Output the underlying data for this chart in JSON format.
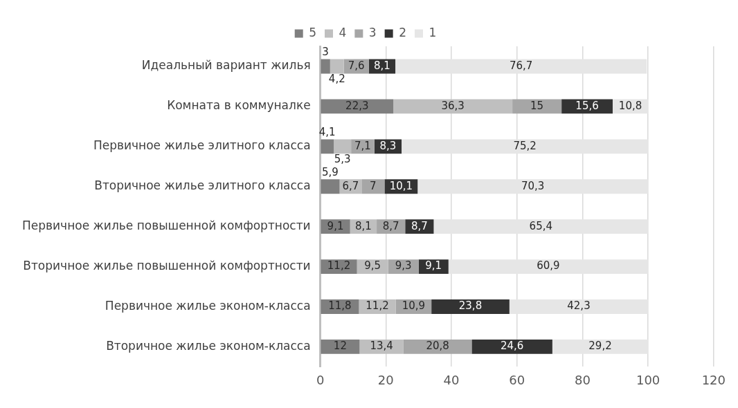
{
  "chart_data": {
    "type": "bar",
    "orientation": "horizontal",
    "stacked": true,
    "categories": [
      "Идеальный вариант жилья",
      "Комната в коммуналке",
      "Первичное жилье элитного класса",
      "Вторичное жилье элитного класса",
      "Первичное жилье повышенной комфортности",
      "Вторичное жилье повышенной комфортности",
      "Первичное жилье эконом-класса",
      "Вторичное жилье эконом-класса"
    ],
    "series": [
      {
        "name": "5",
        "color": "#7f7f7f",
        "values": [
          3,
          22.3,
          4.1,
          5.9,
          9.1,
          11.2,
          11.8,
          12
        ],
        "value_labels": [
          "3",
          "22,3",
          "4,1",
          "5,9",
          "9,1",
          "11,2",
          "11,8",
          "12"
        ]
      },
      {
        "name": "4",
        "color": "#bfbfbf",
        "values": [
          4.2,
          36.3,
          5.3,
          6.7,
          8.1,
          9.5,
          11.2,
          13.4
        ],
        "value_labels": [
          "4,2",
          "36,3",
          "5,3",
          "6,7",
          "8,1",
          "9,5",
          "11,2",
          "13,4"
        ]
      },
      {
        "name": "3",
        "color": "#a6a6a6",
        "values": [
          7.6,
          15,
          7.1,
          7,
          8.7,
          9.3,
          10.9,
          20.8
        ],
        "value_labels": [
          "7,6",
          "15",
          "7,1",
          "7",
          "8,7",
          "9,3",
          "10,9",
          "20,8"
        ]
      },
      {
        "name": "2",
        "color": "#333333",
        "values": [
          8.1,
          15.6,
          8.3,
          10.1,
          8.7,
          9.1,
          23.8,
          24.6
        ],
        "value_labels": [
          "8,1",
          "15,6",
          "8,3",
          "10,1",
          "8,7",
          "9,1",
          "23,8",
          "24,6"
        ]
      },
      {
        "name": "1",
        "color": "#e6e6e6",
        "values": [
          76.7,
          10.8,
          75.2,
          70.3,
          65.4,
          60.9,
          42.3,
          29.2
        ],
        "value_labels": [
          "76,7",
          "10,8",
          "75,2",
          "70,3",
          "65,4",
          "60,9",
          "42,3",
          "29,2"
        ]
      }
    ],
    "xlim": [
      0,
      120
    ],
    "xticks": [
      0,
      20,
      40,
      60,
      80,
      100,
      120
    ],
    "grid": "x",
    "legend": "top"
  }
}
